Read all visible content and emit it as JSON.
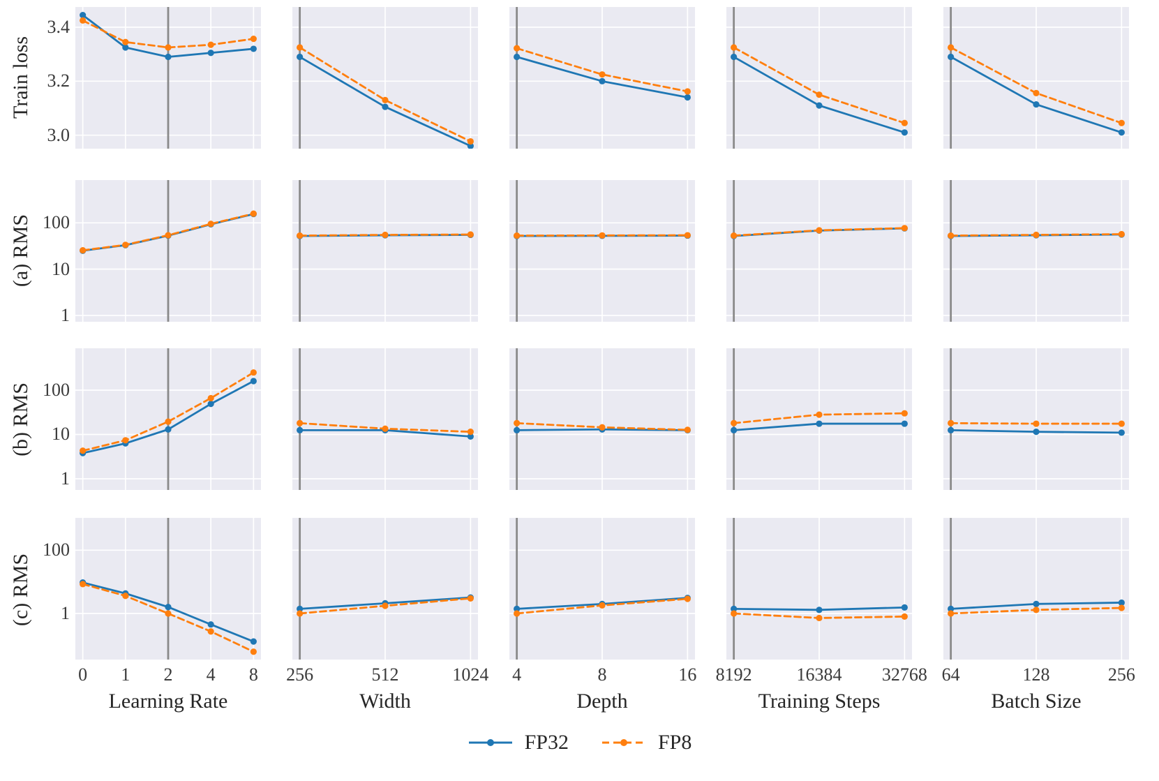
{
  "chart_data": {
    "type": "line",
    "title": "",
    "description": "4x5 grid of line plots comparing FP32 vs FP8 runs across hyperparameter sweeps; vertical gray line marks the reference configuration in each panel",
    "colors": {
      "fp32": "#1f77b4",
      "fp8": "#ff7f0e",
      "panel_bg": "#eaeaf2",
      "grid": "#ffffff",
      "ref_line": "#8a8a8a",
      "text": "#262626"
    },
    "legend": [
      {
        "label": "FP32",
        "style": "solid"
      },
      {
        "label": "FP8",
        "style": "dashed"
      }
    ],
    "columns": [
      {
        "xlabel": "Learning Rate",
        "ticks": [
          "0",
          "1",
          "2",
          "4",
          "8"
        ],
        "ref_tick_index": 2
      },
      {
        "xlabel": "Width",
        "ticks": [
          "256",
          "512",
          "1024"
        ],
        "ref_tick_index": 0
      },
      {
        "xlabel": "Depth",
        "ticks": [
          "4",
          "8",
          "16"
        ],
        "ref_tick_index": 0
      },
      {
        "xlabel": "Training Steps",
        "ticks": [
          "8192",
          "16384",
          "32768"
        ],
        "ref_tick_index": 0
      },
      {
        "xlabel": "Batch Size",
        "ticks": [
          "64",
          "128",
          "256"
        ],
        "ref_tick_index": 0
      }
    ],
    "rows": [
      {
        "ylabel": "Train loss",
        "yscale": "linear",
        "ylim": [
          2.95,
          3.475
        ],
        "yticks": [
          {
            "value": 3.0,
            "label": "3.0"
          },
          {
            "value": 3.2,
            "label": "3.2"
          },
          {
            "value": 3.4,
            "label": "3.4"
          }
        ],
        "panels": [
          {
            "fp32": [
              3.445,
              3.325,
              3.29,
              3.305,
              3.32
            ],
            "fp8": [
              3.425,
              3.345,
              3.325,
              3.335,
              3.357
            ]
          },
          {
            "fp32": [
              3.29,
              3.105,
              2.96
            ],
            "fp8": [
              3.325,
              3.13,
              2.977
            ]
          },
          {
            "fp32": [
              3.29,
              3.2,
              3.14
            ],
            "fp8": [
              3.322,
              3.225,
              3.162
            ]
          },
          {
            "fp32": [
              3.29,
              3.11,
              3.01
            ],
            "fp8": [
              3.325,
              3.15,
              3.045
            ]
          },
          {
            "fp32": [
              3.29,
              3.114,
              3.01
            ],
            "fp8": [
              3.325,
              3.156,
              3.045
            ]
          }
        ]
      },
      {
        "ylabel": "(a) RMS",
        "yscale": "log",
        "ylim": [
          0.73,
          840
        ],
        "yticks": [
          {
            "value": 1,
            "label": "1"
          },
          {
            "value": 10,
            "label": "10"
          },
          {
            "value": 100,
            "label": "100"
          }
        ],
        "panels": [
          {
            "fp32": [
              25,
              33,
              53,
              93,
              155
            ],
            "fp8": [
              25.5,
              33.5,
              54,
              95,
              158
            ]
          },
          {
            "fp32": [
              52,
              54,
              55
            ],
            "fp8": [
              53,
              55,
              56
            ]
          },
          {
            "fp32": [
              52,
              52.5,
              53
            ],
            "fp8": [
              53,
              53.5,
              54
            ]
          },
          {
            "fp32": [
              52,
              68,
              76
            ],
            "fp8": [
              53,
              69,
              77
            ]
          },
          {
            "fp32": [
              52,
              54,
              56
            ],
            "fp8": [
              53,
              55,
              57
            ]
          }
        ]
      },
      {
        "ylabel": "(b) RMS",
        "yscale": "log",
        "ylim": [
          0.56,
          880
        ],
        "yticks": [
          {
            "value": 1,
            "label": "1"
          },
          {
            "value": 10,
            "label": "10"
          },
          {
            "value": 100,
            "label": "100"
          }
        ],
        "panels": [
          {
            "fp32": [
              3.8,
              6.3,
              13,
              49,
              160
            ],
            "fp8": [
              4.3,
              7.4,
              19.5,
              66,
              250
            ]
          },
          {
            "fp32": [
              12.5,
              12.5,
              9
            ],
            "fp8": [
              18,
              13.5,
              11.5
            ]
          },
          {
            "fp32": [
              12.5,
              13,
              12.5
            ],
            "fp8": [
              18,
              14.5,
              12.7
            ]
          },
          {
            "fp32": [
              12.5,
              17.5,
              17.5
            ],
            "fp8": [
              18,
              28,
              30
            ]
          },
          {
            "fp32": [
              12.5,
              11.5,
              11
            ],
            "fp8": [
              18,
              17.5,
              17.5
            ]
          }
        ]
      },
      {
        "ylabel": "(c) RMS",
        "yscale": "log",
        "ylim": [
          0.035,
          1050
        ],
        "yticks": [
          {
            "value": 1,
            "label": "1"
          },
          {
            "value": 100,
            "label": "100"
          }
        ],
        "panels": [
          {
            "fp32": [
              9.5,
              4.3,
              1.6,
              0.45,
              0.13
            ],
            "fp8": [
              8.5,
              3.6,
              1.0,
              0.27,
              0.062
            ]
          },
          {
            "fp32": [
              1.4,
              2.1,
              3.2
            ],
            "fp8": [
              1.0,
              1.75,
              3.0
            ]
          },
          {
            "fp32": [
              1.4,
              2.0,
              3.1
            ],
            "fp8": [
              1.0,
              1.8,
              2.9
            ]
          },
          {
            "fp32": [
              1.4,
              1.3,
              1.55
            ],
            "fp8": [
              1.0,
              0.72,
              0.8
            ]
          },
          {
            "fp32": [
              1.4,
              2.0,
              2.2
            ],
            "fp8": [
              1.0,
              1.3,
              1.5
            ]
          }
        ]
      }
    ]
  }
}
